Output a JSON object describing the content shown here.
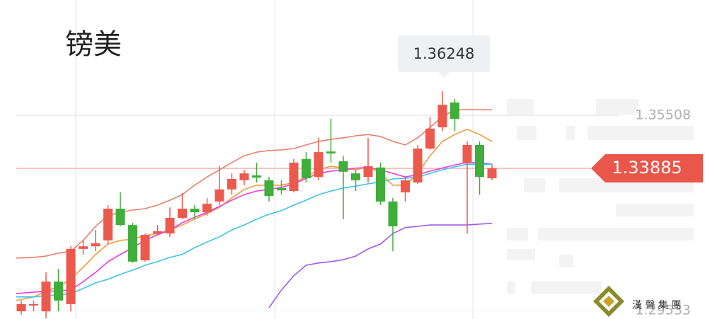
{
  "chart_data": {
    "type": "candlestick",
    "title": "镑美",
    "open": [
      1.2951,
      1.2969,
      1.2951,
      1.3042,
      1.2973,
      1.3142,
      1.315,
      1.3168,
      1.3265,
      1.3215,
      1.3107,
      1.3189,
      1.3189,
      1.3237,
      1.3265,
      1.3254,
      1.3287,
      1.3324,
      1.3352,
      1.3367,
      1.3352,
      1.3328,
      1.3319,
      1.3417,
      1.3362,
      1.344,
      1.341,
      1.3373,
      1.3362,
      1.3391,
      1.3287,
      1.3315,
      1.3345,
      1.3449,
      1.3514,
      1.359,
      1.3406,
      1.346,
      1.3358
    ],
    "high": [
      1.2984,
      1.2984,
      1.307,
      1.3081,
      1.315,
      1.3168,
      1.32,
      1.3276,
      1.3315,
      1.3222,
      1.3189,
      1.3215,
      1.3269,
      1.3313,
      1.3276,
      1.3298,
      1.3395,
      1.3373,
      1.3384,
      1.3406,
      1.3362,
      1.3352,
      1.3417,
      1.3438,
      1.3482,
      1.354,
      1.3427,
      1.3384,
      1.3482,
      1.3406,
      1.3298,
      1.3362,
      1.346,
      1.3546,
      1.36248,
      1.3601,
      1.3471,
      1.3471,
      1.3401
    ],
    "low": [
      1.2941,
      1.2951,
      1.293,
      1.2951,
      1.2951,
      1.3125,
      1.3135,
      1.3157,
      1.3211,
      1.3099,
      1.3103,
      1.3183,
      1.3179,
      1.3233,
      1.3233,
      1.3244,
      1.3276,
      1.3308,
      1.3337,
      1.3345,
      1.3287,
      1.3308,
      1.3315,
      1.3345,
      1.3352,
      1.3406,
      1.3233,
      1.3319,
      1.3345,
      1.3276,
      1.3135,
      1.3287,
      1.3341,
      1.3445,
      1.3503,
      1.3503,
      1.3189,
      1.3308,
      1.3352
    ],
    "close": [
      1.2973,
      1.2973,
      1.3042,
      1.2984,
      1.3142,
      1.315,
      1.3159,
      1.3265,
      1.3215,
      1.3103,
      1.3185,
      1.3196,
      1.3237,
      1.3265,
      1.3254,
      1.328,
      1.3324,
      1.3356,
      1.3373,
      1.336,
      1.3304,
      1.3321,
      1.3406,
      1.3358,
      1.3438,
      1.3434,
      1.3378,
      1.3352,
      1.3395,
      1.3287,
      1.3211,
      1.3352,
      1.3449,
      1.351,
      1.3583,
      1.354,
      1.346,
      1.3362,
      1.33885
    ],
    "up_color": "#ec5a4e",
    "down_color": "#3fae3a",
    "lines": [
      {
        "color": "#e8806c",
        "values": [
          1.3114,
          1.3116,
          1.312,
          1.3129,
          1.3135,
          1.3168,
          1.3211,
          1.3244,
          1.3254,
          1.3261,
          1.3265,
          1.3276,
          1.3291,
          1.3308,
          1.3337,
          1.3362,
          1.3384,
          1.3406,
          1.3427,
          1.3438,
          1.3443,
          1.3445,
          1.3449,
          1.346,
          1.3471,
          1.3477,
          1.3482,
          1.3488,
          1.3492,
          1.3486,
          1.3471,
          1.346,
          1.3482,
          1.3514,
          1.3546,
          1.3568,
          1.3568,
          1.3568,
          1.3568
        ]
      },
      {
        "color": "#f39a3c",
        "values": [
          1.2984,
          1.2995,
          1.3012,
          1.3027,
          1.3049,
          1.3086,
          1.3125,
          1.3157,
          1.3168,
          1.3172,
          1.3183,
          1.3189,
          1.32,
          1.3215,
          1.3233,
          1.325,
          1.3269,
          1.3298,
          1.3324,
          1.3337,
          1.3337,
          1.3337,
          1.3345,
          1.3362,
          1.3384,
          1.3395,
          1.3389,
          1.3384,
          1.3393,
          1.3373,
          1.3337,
          1.3337,
          1.3373,
          1.3427,
          1.3471,
          1.3492,
          1.3508,
          1.3492,
          1.3471
        ]
      },
      {
        "color": "#ee3be0",
        "values": [
          1.3005,
          1.301,
          1.3012,
          1.3014,
          1.3016,
          1.3042,
          1.307,
          1.3103,
          1.3125,
          1.3146,
          1.3168,
          1.3185,
          1.32,
          1.3222,
          1.3239,
          1.3254,
          1.3272,
          1.3291,
          1.3308,
          1.3319,
          1.3324,
          1.333,
          1.3341,
          1.3358,
          1.3373,
          1.338,
          1.3384,
          1.3389,
          1.3391,
          1.3384,
          1.3373,
          1.3362,
          1.3369,
          1.338,
          1.3389,
          1.3399,
          1.3406,
          1.3406,
          1.3401
        ]
      },
      {
        "color": "#3cc4e6",
        "values": [
          1.2995,
          1.2995,
          1.2999,
          1.3001,
          1.3005,
          1.3021,
          1.3038,
          1.3049,
          1.3064,
          1.3077,
          1.3092,
          1.3103,
          1.3116,
          1.3125,
          1.3146,
          1.3163,
          1.3179,
          1.32,
          1.3215,
          1.3233,
          1.3248,
          1.3259,
          1.3276,
          1.3291,
          1.3308,
          1.3319,
          1.3328,
          1.3334,
          1.3341,
          1.3347,
          1.3356,
          1.3358,
          1.3362,
          1.3373,
          1.3384,
          1.3393,
          1.3401,
          1.3401,
          1.3401
        ]
      },
      {
        "color": "#a25ae8",
        "values": [
          null,
          null,
          null,
          null,
          null,
          null,
          null,
          null,
          null,
          null,
          null,
          null,
          null,
          null,
          null,
          null,
          null,
          null,
          null,
          null,
          1.2962,
          1.3016,
          1.306,
          1.3092,
          1.3099,
          1.3103,
          1.3109,
          1.312,
          1.3142,
          1.3157,
          1.3189,
          1.3207,
          1.3211,
          1.3215,
          1.3215,
          1.3215,
          1.3215,
          1.3218,
          1.322
        ]
      }
    ],
    "ylim": [
      1.29275,
      1.39035
    ],
    "yticks": [
      1.29533,
      1.35508
    ]
  },
  "logo": "漢 聲 集 團"
}
